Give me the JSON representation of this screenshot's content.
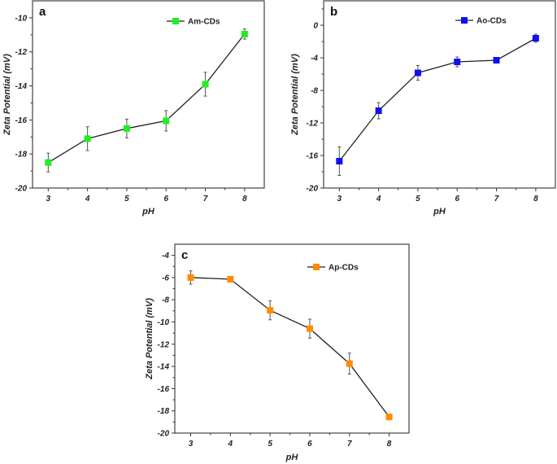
{
  "chart_data": [
    {
      "type": "line",
      "panel_label": "a",
      "xlabel": "pH",
      "ylabel": "Zeta Potential (mV)",
      "x": [
        3,
        4,
        5,
        6,
        7,
        8
      ],
      "xticks": [
        "3",
        "4",
        "5",
        "6",
        "7",
        "8"
      ],
      "yticks": [
        "-10",
        "-12",
        "-14",
        "-16",
        "-18",
        "-20"
      ],
      "ylim": [
        -20,
        -9
      ],
      "xlim": [
        2.6,
        8.5
      ],
      "grid": false,
      "legend_position": "top-right",
      "series": [
        {
          "name": "Am-CDs",
          "color": "#22ee22",
          "marker": "square",
          "values": [
            -18.5,
            -17.1,
            -16.5,
            -16.05,
            -13.9,
            -10.95
          ],
          "errors": [
            0.55,
            0.7,
            0.55,
            0.6,
            0.7,
            0.3
          ]
        }
      ]
    },
    {
      "type": "line",
      "panel_label": "b",
      "xlabel": "pH",
      "ylabel": "Zeta Potential (mV)",
      "x": [
        3,
        4,
        5,
        6,
        7,
        8
      ],
      "xticks": [
        "3",
        "4",
        "5",
        "6",
        "7",
        "8"
      ],
      "yticks": [
        "0",
        "-4",
        "-8",
        "-12",
        "-16",
        "-20"
      ],
      "ylim": [
        -20,
        3
      ],
      "xlim": [
        2.6,
        8.5
      ],
      "grid": false,
      "legend_position": "top-right",
      "series": [
        {
          "name": "Ao-CDs",
          "color": "#1010ee",
          "marker": "square",
          "values": [
            -16.7,
            -10.5,
            -5.85,
            -4.5,
            -4.3,
            -1.6
          ],
          "errors": [
            1.75,
            1.0,
            0.9,
            0.6,
            0.25,
            0.5
          ]
        }
      ]
    },
    {
      "type": "line",
      "panel_label": "c",
      "xlabel": "pH",
      "ylabel": "Zeta Potential (mV)",
      "x": [
        3,
        4,
        5,
        6,
        7,
        8
      ],
      "xticks": [
        "3",
        "4",
        "5",
        "6",
        "7",
        "8"
      ],
      "yticks": [
        "-4",
        "-6",
        "-8",
        "-10",
        "-12",
        "-14",
        "-16",
        "-18",
        "-20"
      ],
      "ylim": [
        -20,
        -3
      ],
      "xlim": [
        2.6,
        8.5
      ],
      "grid": false,
      "legend_position": "top-right",
      "series": [
        {
          "name": "Ap-CDs",
          "color": "#ff8c00",
          "marker": "square",
          "values": [
            -6.0,
            -6.15,
            -8.95,
            -10.6,
            -13.75,
            -18.55
          ],
          "errors": [
            0.6,
            0.2,
            0.85,
            0.85,
            0.95,
            0.25
          ]
        }
      ]
    }
  ]
}
